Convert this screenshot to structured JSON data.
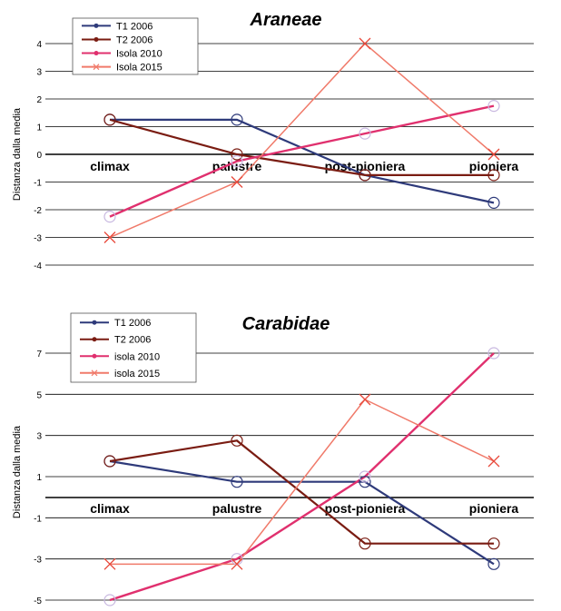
{
  "colors": {
    "T1": "#2e3a7a",
    "T2": "#7a1c12",
    "isola2010": "#e0306e",
    "isola2015": "#f07a6a",
    "gridline": "#000000",
    "circle": "#c8b8e0"
  },
  "chart_data": [
    {
      "type": "line",
      "title": "Araneae",
      "ylabel": "Distanza dalla media",
      "xlabel": "",
      "categories": [
        "climax",
        "palustre",
        "post-pioniera",
        "pioniera"
      ],
      "yticks": [
        4,
        3,
        2,
        1,
        0,
        -1,
        -2,
        -3,
        -4
      ],
      "ylim": [
        -4,
        4.5
      ],
      "grid": true,
      "legend_position": "top-left",
      "series": [
        {
          "name": "T1 2006",
          "marker": "circle",
          "values": [
            1.25,
            1.25,
            -0.75,
            -1.75
          ]
        },
        {
          "name": "T2 2006",
          "marker": "circle",
          "values": [
            1.25,
            0.0,
            -0.75,
            -0.75
          ]
        },
        {
          "name": "Isola 2010",
          "marker": "circle",
          "values": [
            -2.25,
            -0.25,
            0.75,
            1.75
          ]
        },
        {
          "name": "Isola 2015",
          "marker": "x",
          "values": [
            -3.0,
            -1.0,
            4.0,
            0.0
          ]
        }
      ]
    },
    {
      "type": "line",
      "title": "Carabidae",
      "ylabel": "Distanza dalla media",
      "xlabel": "",
      "categories": [
        "climax",
        "palustre",
        "post-pioniera",
        "pioniera"
      ],
      "yticks": [
        7,
        5,
        3,
        1,
        -1,
        -3,
        -5
      ],
      "ylim": [
        -5,
        8.5
      ],
      "grid": true,
      "legend_position": "top-left",
      "series": [
        {
          "name": "T1 2006",
          "marker": "circle",
          "values": [
            1.75,
            0.75,
            0.75,
            -3.25
          ]
        },
        {
          "name": "T2 2006",
          "marker": "circle",
          "values": [
            1.75,
            2.75,
            -2.25,
            -2.25
          ]
        },
        {
          "name": "isola 2010",
          "marker": "circle",
          "values": [
            -5.0,
            -3.0,
            1.0,
            7.0
          ]
        },
        {
          "name": "isola 2015",
          "marker": "x",
          "values": [
            -3.25,
            -3.25,
            4.75,
            1.75
          ]
        }
      ]
    }
  ]
}
